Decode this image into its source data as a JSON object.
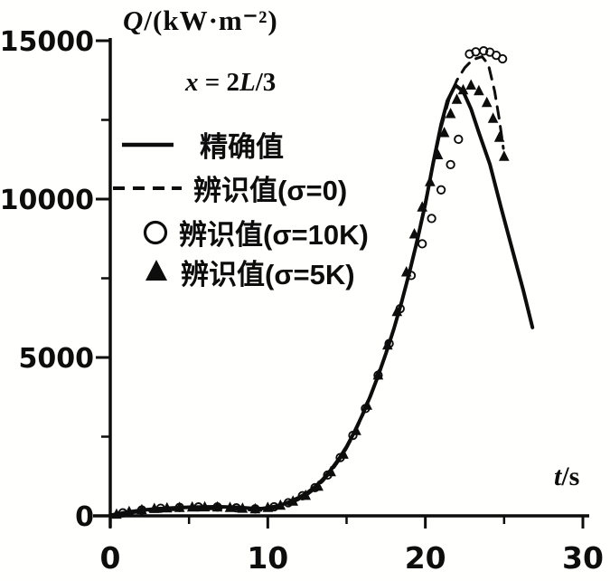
{
  "figure": {
    "background": "#fffffe",
    "ink_color": "#0d0d0d"
  },
  "chart_data": {
    "type": "line",
    "title": "Q/(kW·m⁻²)",
    "y_axis_title_var": "Q",
    "y_axis_title_rest": "/(kW·m⁻²)",
    "x_axis_title_var": "t",
    "x_axis_title_rest": "/s",
    "annotation": {
      "var1": "x",
      "mid": " = 2",
      "var2": "L",
      "rest": "/3"
    },
    "xlabel": "t/s",
    "ylabel": "Q/(kW·m⁻²)",
    "xlim": [
      0,
      30
    ],
    "ylim": [
      0,
      15000
    ],
    "grid": false,
    "legend_position": "upper-left-inside",
    "x_major_ticks": [
      0,
      10,
      20,
      30
    ],
    "x_minor_ticks": [
      5,
      15,
      25
    ],
    "x_tick_labels": [
      "0",
      "10",
      "20",
      "30"
    ],
    "y_major_ticks": [
      0,
      5000,
      10000,
      15000
    ],
    "y_minor_ticks": [
      2500,
      7500,
      12500
    ],
    "y_tick_labels": [
      "0",
      "5000",
      "10000",
      "15000"
    ],
    "legend": [
      {
        "label": "精确值",
        "marker": "solid-line"
      },
      {
        "label": "辨识值(σ=0)",
        "marker": "dashed-line"
      },
      {
        "label": "辨识值(σ=10K)",
        "marker": "open-circle"
      },
      {
        "label": "辨识值(σ=5K)",
        "marker": "filled-triangle"
      }
    ],
    "series": [
      {
        "id": "exact",
        "name": "精确值",
        "type": "line",
        "style": "solid",
        "points": [
          [
            0,
            20
          ],
          [
            0.5,
            60
          ],
          [
            1,
            110
          ],
          [
            2,
            180
          ],
          [
            3,
            225
          ],
          [
            4,
            252
          ],
          [
            5,
            270
          ],
          [
            6,
            282
          ],
          [
            7,
            285
          ],
          [
            8,
            270
          ],
          [
            9,
            238
          ],
          [
            9.6,
            228
          ],
          [
            10,
            255
          ],
          [
            10.5,
            300
          ],
          [
            11,
            375
          ],
          [
            11.5,
            465
          ],
          [
            12,
            585
          ],
          [
            12.5,
            725
          ],
          [
            13,
            915
          ],
          [
            13.5,
            1155
          ],
          [
            14,
            1450
          ],
          [
            14.5,
            1790
          ],
          [
            15,
            2180
          ],
          [
            15.5,
            2650
          ],
          [
            16,
            3180
          ],
          [
            16.5,
            3770
          ],
          [
            17,
            4420
          ],
          [
            17.5,
            5130
          ],
          [
            18,
            5900
          ],
          [
            18.5,
            6760
          ],
          [
            19,
            7700
          ],
          [
            19.5,
            8720
          ],
          [
            20,
            9850
          ],
          [
            20.5,
            11150
          ],
          [
            21,
            12350
          ],
          [
            21.4,
            13100
          ],
          [
            21.9,
            13600
          ],
          [
            22.4,
            13400
          ],
          [
            22.9,
            12850
          ],
          [
            23.4,
            12100
          ],
          [
            24.1,
            11100
          ],
          [
            24.8,
            9750
          ],
          [
            25.5,
            8450
          ],
          [
            26.2,
            7150
          ],
          [
            26.8,
            5950
          ]
        ]
      },
      {
        "id": "identified-sigma0",
        "name": "辨识值(σ=0)",
        "type": "line",
        "style": "dashed",
        "points": [
          [
            0,
            15
          ],
          [
            1,
            75
          ],
          [
            2,
            130
          ],
          [
            3,
            170
          ],
          [
            4,
            195
          ],
          [
            5,
            210
          ],
          [
            6,
            222
          ],
          [
            7,
            222
          ],
          [
            8,
            207
          ],
          [
            9,
            180
          ],
          [
            9.6,
            172
          ],
          [
            10,
            200
          ],
          [
            10.5,
            248
          ],
          [
            11,
            320
          ],
          [
            11.5,
            410
          ],
          [
            12,
            525
          ],
          [
            12.5,
            665
          ],
          [
            13,
            860
          ],
          [
            13.5,
            1100
          ],
          [
            14,
            1390
          ],
          [
            14.5,
            1735
          ],
          [
            15,
            2130
          ],
          [
            15.5,
            2600
          ],
          [
            16,
            3140
          ],
          [
            16.5,
            3740
          ],
          [
            17,
            4400
          ],
          [
            17.5,
            5120
          ],
          [
            18,
            5905
          ],
          [
            18.5,
            6780
          ],
          [
            19,
            7740
          ],
          [
            19.5,
            8780
          ],
          [
            20,
            9920
          ],
          [
            20.5,
            11100
          ],
          [
            21,
            12250
          ],
          [
            21.5,
            13150
          ],
          [
            22,
            13750
          ],
          [
            22.5,
            14150
          ],
          [
            23,
            14400
          ],
          [
            23.6,
            14500
          ],
          [
            24,
            14250
          ],
          [
            24.4,
            13400
          ],
          [
            24.7,
            12500
          ],
          [
            24.95,
            11600
          ]
        ]
      },
      {
        "id": "identified-sigma10k",
        "name": "辨识值(σ=10K)",
        "type": "scatter",
        "marker": "open-circle",
        "points": [
          [
            0.8,
            95
          ],
          [
            2,
            185
          ],
          [
            3.2,
            240
          ],
          [
            4.4,
            265
          ],
          [
            5.6,
            280
          ],
          [
            6.8,
            280
          ],
          [
            8,
            255
          ],
          [
            9.2,
            220
          ],
          [
            10.4,
            285
          ],
          [
            11.3,
            415
          ],
          [
            12.2,
            635
          ],
          [
            13,
            890
          ],
          [
            13.8,
            1290
          ],
          [
            14.6,
            1840
          ],
          [
            15.4,
            2540
          ],
          [
            16.2,
            3390
          ],
          [
            17,
            4440
          ],
          [
            17.7,
            5440
          ],
          [
            18.4,
            6540
          ],
          [
            19.1,
            7590
          ],
          [
            19.8,
            8590
          ],
          [
            20.4,
            9390
          ],
          [
            21,
            10290
          ],
          [
            21.6,
            11090
          ],
          [
            22.1,
            11890
          ],
          [
            22.8,
            14580
          ],
          [
            23.2,
            14650
          ],
          [
            23.7,
            14680
          ],
          [
            24.1,
            14640
          ],
          [
            24.5,
            14540
          ],
          [
            24.9,
            14430
          ]
        ]
      },
      {
        "id": "identified-sigma5k",
        "name": "辨识值(σ=5K)",
        "type": "scatter",
        "marker": "filled-triangle",
        "points": [
          [
            0.4,
            55
          ],
          [
            1.2,
            135
          ],
          [
            2,
            195
          ],
          [
            2.8,
            232
          ],
          [
            3.6,
            252
          ],
          [
            4.4,
            267
          ],
          [
            5.2,
            277
          ],
          [
            6,
            282
          ],
          [
            6.8,
            277
          ],
          [
            7.6,
            262
          ],
          [
            8.4,
            240
          ],
          [
            9.2,
            222
          ],
          [
            10,
            262
          ],
          [
            10.8,
            338
          ],
          [
            11.6,
            465
          ],
          [
            12.4,
            645
          ],
          [
            13.2,
            935
          ],
          [
            14,
            1395
          ],
          [
            14.8,
            1945
          ],
          [
            15.6,
            2695
          ],
          [
            16.3,
            3495
          ],
          [
            17,
            4445
          ],
          [
            17.6,
            5395
          ],
          [
            18.2,
            6450
          ],
          [
            18.8,
            7700
          ],
          [
            19.3,
            8900
          ],
          [
            19.8,
            9750
          ],
          [
            20.3,
            10550
          ],
          [
            20.8,
            11400
          ],
          [
            21.2,
            12100
          ],
          [
            21.6,
            12700
          ],
          [
            22,
            13150
          ],
          [
            22.4,
            13450
          ],
          [
            22.9,
            13600
          ],
          [
            23.4,
            13420
          ],
          [
            23.9,
            13050
          ],
          [
            24.3,
            12550
          ],
          [
            24.7,
            11950
          ],
          [
            25,
            11350
          ]
        ]
      }
    ]
  }
}
